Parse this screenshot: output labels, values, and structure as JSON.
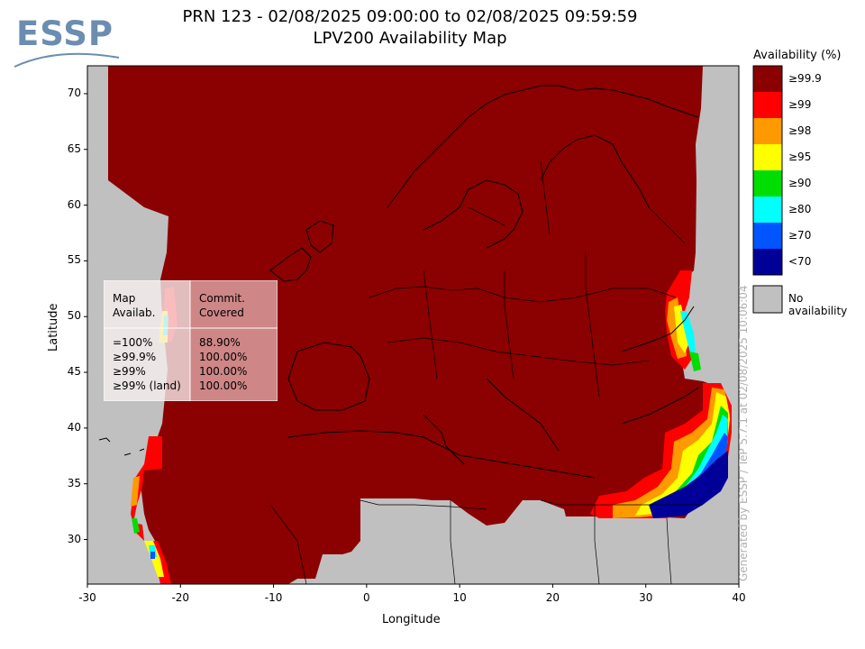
{
  "logo": {
    "text": "ESSP"
  },
  "title": {
    "line1": "PRN 123 - 02/08/2025 09:00:00 to 02/08/2025 09:59:59",
    "line2": "LPV200 Availability Map"
  },
  "axes": {
    "xlabel": "Longitude",
    "ylabel": "Latitude",
    "x_ticks": [
      "-30",
      "-20",
      "-10",
      "0",
      "10",
      "20",
      "30",
      "40"
    ],
    "y_ticks": [
      "70",
      "65",
      "60",
      "55",
      "50",
      "45",
      "40",
      "35",
      "30"
    ],
    "xlim": [
      -30,
      40
    ],
    "ylim": [
      26,
      72.5
    ]
  },
  "legend": {
    "title": "Availability (%)",
    "items": [
      {
        "label": "≥99.9",
        "color": "#8b0000"
      },
      {
        "label": "≥99",
        "color": "#ff0000"
      },
      {
        "label": "≥98",
        "color": "#ff9900"
      },
      {
        "label": "≥95",
        "color": "#ffff00"
      },
      {
        "label": "≥90",
        "color": "#00dd00"
      },
      {
        "label": "≥80",
        "color": "#00ffff"
      },
      {
        "label": "≥70",
        "color": "#0055ff"
      },
      {
        "label": "<70",
        "color": "#000099"
      }
    ],
    "none": {
      "label": "No availability",
      "color": "#c0c0c0"
    }
  },
  "stats_table": {
    "header_col1": "Map\nAvailab.",
    "header_col2": "Commit.\nCovered",
    "rows": [
      {
        "level": "=100%",
        "covered": "88.90%"
      },
      {
        "level": "≥99.9%",
        "covered": "100.00%"
      },
      {
        "level": "≥99%",
        "covered": "100.00%"
      },
      {
        "level": "≥99% (land)",
        "covered": "100.00%"
      }
    ]
  },
  "watermark": "Generated by ESSP / TeP 5.7.1 at 02/08/2025 10:06:04",
  "colors": {
    "no_availability": "#c0c0c0",
    "frame": "#000000"
  }
}
